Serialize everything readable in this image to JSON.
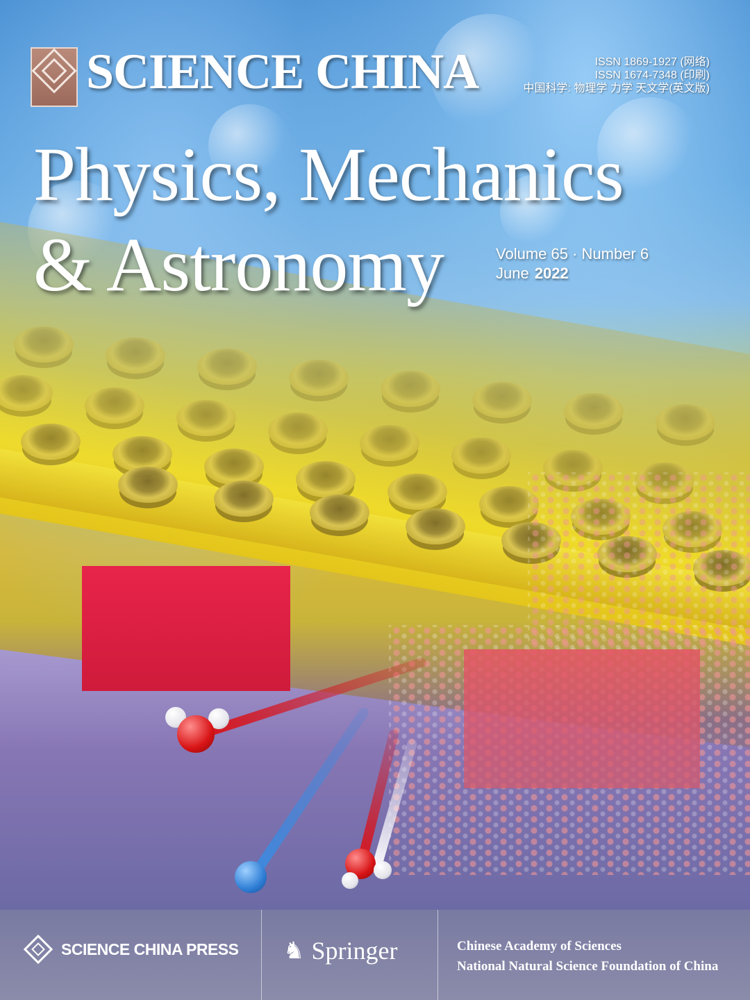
{
  "header": {
    "brand": "SCIENCE CHINA",
    "issn_online": "ISSN  1869-1927 (网络)",
    "issn_print": "ISSN  1674-7348 (印刷)",
    "chinese_title": "中国科学: 物理学 力学 天文学(英文版)"
  },
  "title": {
    "line1": "Physics, Mechanics",
    "line2": "& Astronomy"
  },
  "issue": {
    "volume_number": "Volume 65 · Number 6",
    "month": "June",
    "year": "2022"
  },
  "footer": {
    "publisher": "SCIENCE CHINA PRESS",
    "partner": "Springer",
    "sponsor1": "Chinese Academy of  Sciences",
    "sponsor2": "National Natural Science Foundation of China"
  },
  "colors": {
    "sky": "#2f7dc8",
    "plate": "#e4c51b",
    "block": "#cf1b3b",
    "base": "#8776b4",
    "footer": "#7a7aa0"
  }
}
